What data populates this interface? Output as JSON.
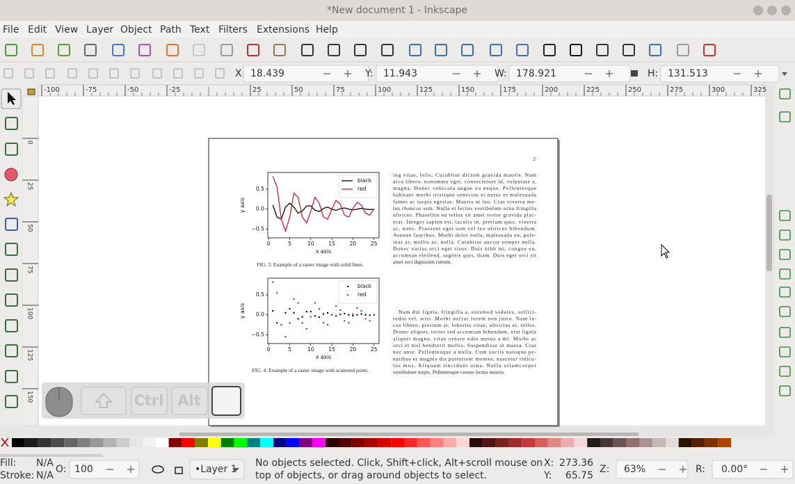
{
  "window": {
    "title": "*New document 1 - Inkscape"
  },
  "menu": [
    "File",
    "Edit",
    "View",
    "Layer",
    "Object",
    "Path",
    "Text",
    "Filters",
    "Extensions",
    "Help"
  ],
  "coords": [
    {
      "label": "X:",
      "value": "18.439"
    },
    {
      "label": "Y:",
      "value": "11.943"
    },
    {
      "label": "W:",
      "value": "178.921"
    },
    {
      "label": "H:",
      "value": "131.513"
    }
  ],
  "ruler": {
    "h_ticks": [
      -100,
      -75,
      -50,
      -25,
      25,
      50,
      75,
      100,
      125,
      150,
      175,
      200,
      225,
      250,
      275,
      300,
      325
    ],
    "v_ticks": [
      0,
      25,
      50,
      75,
      100,
      125,
      150
    ]
  },
  "page_number": "2",
  "figures": [
    {
      "type": "line",
      "legend": "upper right",
      "x": [
        1,
        2,
        3,
        4,
        5,
        6,
        7,
        8,
        9,
        10,
        11,
        12,
        13,
        14,
        15,
        16,
        17,
        18,
        19,
        20,
        21,
        22,
        23,
        24,
        25
      ],
      "series": [
        {
          "name": "black",
          "color": "#000000",
          "values": [
            0.1,
            -0.2,
            -0.25,
            0.05,
            0.15,
            0.05,
            -0.1,
            -0.05,
            0.08,
            0.08,
            -0.03,
            -0.06,
            0.02,
            0.05,
            0.0,
            -0.03,
            0.01,
            0.03,
            0.0,
            -0.02,
            0.0,
            0.02,
            0.0,
            -0.01,
            0.0
          ]
        },
        {
          "name": "red",
          "color": "#d0202a",
          "values": [
            0.82,
            0.55,
            -0.25,
            -0.55,
            -0.2,
            0.4,
            0.3,
            -0.2,
            -0.35,
            -0.05,
            0.3,
            0.15,
            -0.2,
            -0.25,
            0.0,
            0.22,
            0.12,
            -0.15,
            -0.2,
            0.02,
            0.17,
            0.1,
            -0.1,
            -0.15,
            0.0
          ]
        }
      ],
      "xlim": [
        -0.2,
        26.2
      ],
      "ylim": [
        -0.72,
        0.92
      ],
      "xticks": [
        0,
        5,
        10,
        15,
        20,
        25
      ],
      "yticks": [
        {
          "value": -0.5,
          "label": "−0.5"
        },
        {
          "value": 0,
          "label": "0.0"
        },
        0.5
      ],
      "xlabel": "x axis",
      "ylabel": "y axis",
      "caption": "FIG. 3. Example of a raster image with solid lines."
    },
    {
      "type": "scatter",
      "legend": "upper right",
      "x": [
        1,
        2,
        3,
        4,
        5,
        6,
        7,
        8,
        9,
        10,
        11,
        12,
        13,
        14,
        15,
        16,
        17,
        18,
        19,
        20,
        21,
        22,
        23,
        24,
        25
      ],
      "series": [
        {
          "name": "black",
          "color": "#000000",
          "values": [
            0.1,
            -0.2,
            -0.25,
            0.05,
            0.15,
            0.05,
            -0.1,
            -0.05,
            0.08,
            0.08,
            -0.03,
            -0.06,
            0.02,
            0.05,
            0.0,
            -0.03,
            0.01,
            0.03,
            0.0,
            -0.02,
            0.0,
            0.02,
            0.0,
            -0.01,
            0.0
          ]
        },
        {
          "name": "red",
          "color": "#d0202a",
          "values": [
            0.82,
            0.55,
            -0.25,
            -0.55,
            -0.2,
            0.4,
            0.3,
            -0.2,
            -0.35,
            -0.05,
            0.3,
            0.15,
            -0.2,
            -0.25,
            0.0,
            0.22,
            0.12,
            -0.15,
            -0.2,
            0.02,
            0.17,
            0.1,
            -0.1,
            -0.15,
            0.0
          ]
        }
      ],
      "xlim": [
        -0.2,
        26.2
      ],
      "ylim": [
        -0.72,
        0.92
      ],
      "xticks": [
        0,
        5,
        10,
        15,
        20,
        25
      ],
      "yticks": [
        {
          "value": -0.5,
          "label": "−0.5"
        },
        {
          "value": 0,
          "label": "0.0"
        },
        0.5
      ],
      "xlabel": "x axis",
      "ylabel": "y axis",
      "caption": "FIG. 4. Example of a raster image with scattered point."
    }
  ],
  "paragraphs": [
    [
      "ing vitae, felis. Curabitur dictum gravida mauris. Nam",
      "arcu libero, nonummy eget, consectetuer id, vulputate a,",
      "magna. Donec vehicula augue eu neque. Pellentesque",
      "habitant morbi tristique senectus et netus et malesuada",
      "fames ac turpis egestas. Mauris ut leo. Cras viverra me-",
      "tus rhoncus sem. Nulla et lectus vestibulum urna fringilla",
      "ultrices. Phasellus eu tellus sit amet tortor gravida plac-",
      "erat. Integer sapien est, iaculis in, pretium quis, viverra",
      "ac, nunc. Praesent eget sem vel leo ultrices bibendum.",
      "Aenean faucibus. Morbi dolor nulla, malesuada eu, pulv-",
      "inar at, mollis ac, nulla. Curabitur auctor semper nulla.",
      "Donec varius orci eget risus. Duis nibh mi, congue eu,",
      "accumsan eleifend, sagittis quis, diam. Duis eget orci sit",
      "amet orci dignissim rutrum."
    ],
    [
      "Nam dui ligula, fringilla a, euismod sodales, sollici-",
      "tudin vel, wisi. Morbi auctor lorem non justo. Nam la-",
      "cus libero, pretium at, lobortis vitae, ultricies et, tellus.",
      "Donec aliquet, tortor sed accumsan bibendum, erat ligula",
      "aliquet magna, vitae ornare odio metus a mi. Morbi ac",
      "orci et nisl hendrerit mollis. Suspendisse ut massa. Cras",
      "nec ante. Pellentesque a nulla. Cum sociis natoque pe-",
      "natibus et magnis dis parturient montes, nascetur ridicu-",
      "lus mus. Aliquam tincidunt urna. Nulla ullamcorper",
      "vestibulum turpis. Pellentesque cursus luctus mauris."
    ]
  ],
  "keys": [
    "Ctrl",
    "Alt"
  ],
  "status": {
    "fill_label": "Fill:",
    "fill": "N/A",
    "stroke_label": "Stroke:",
    "stroke": "N/A",
    "opacity_label": "O:",
    "opacity": "100",
    "layer": "•Layer 1",
    "message": [
      "No objects selected. Click, Shift+click, Alt+scroll mouse on",
      "top of objects, or drag around objects to select."
    ],
    "cursor_x_label": "X:",
    "cursor_x": "273.36",
    "cursor_y_label": "Y:",
    "cursor_y": "65.75",
    "zoom_label": "Z:",
    "zoom": "63%",
    "rotate_label": "R:",
    "rotate": "0.00°"
  }
}
